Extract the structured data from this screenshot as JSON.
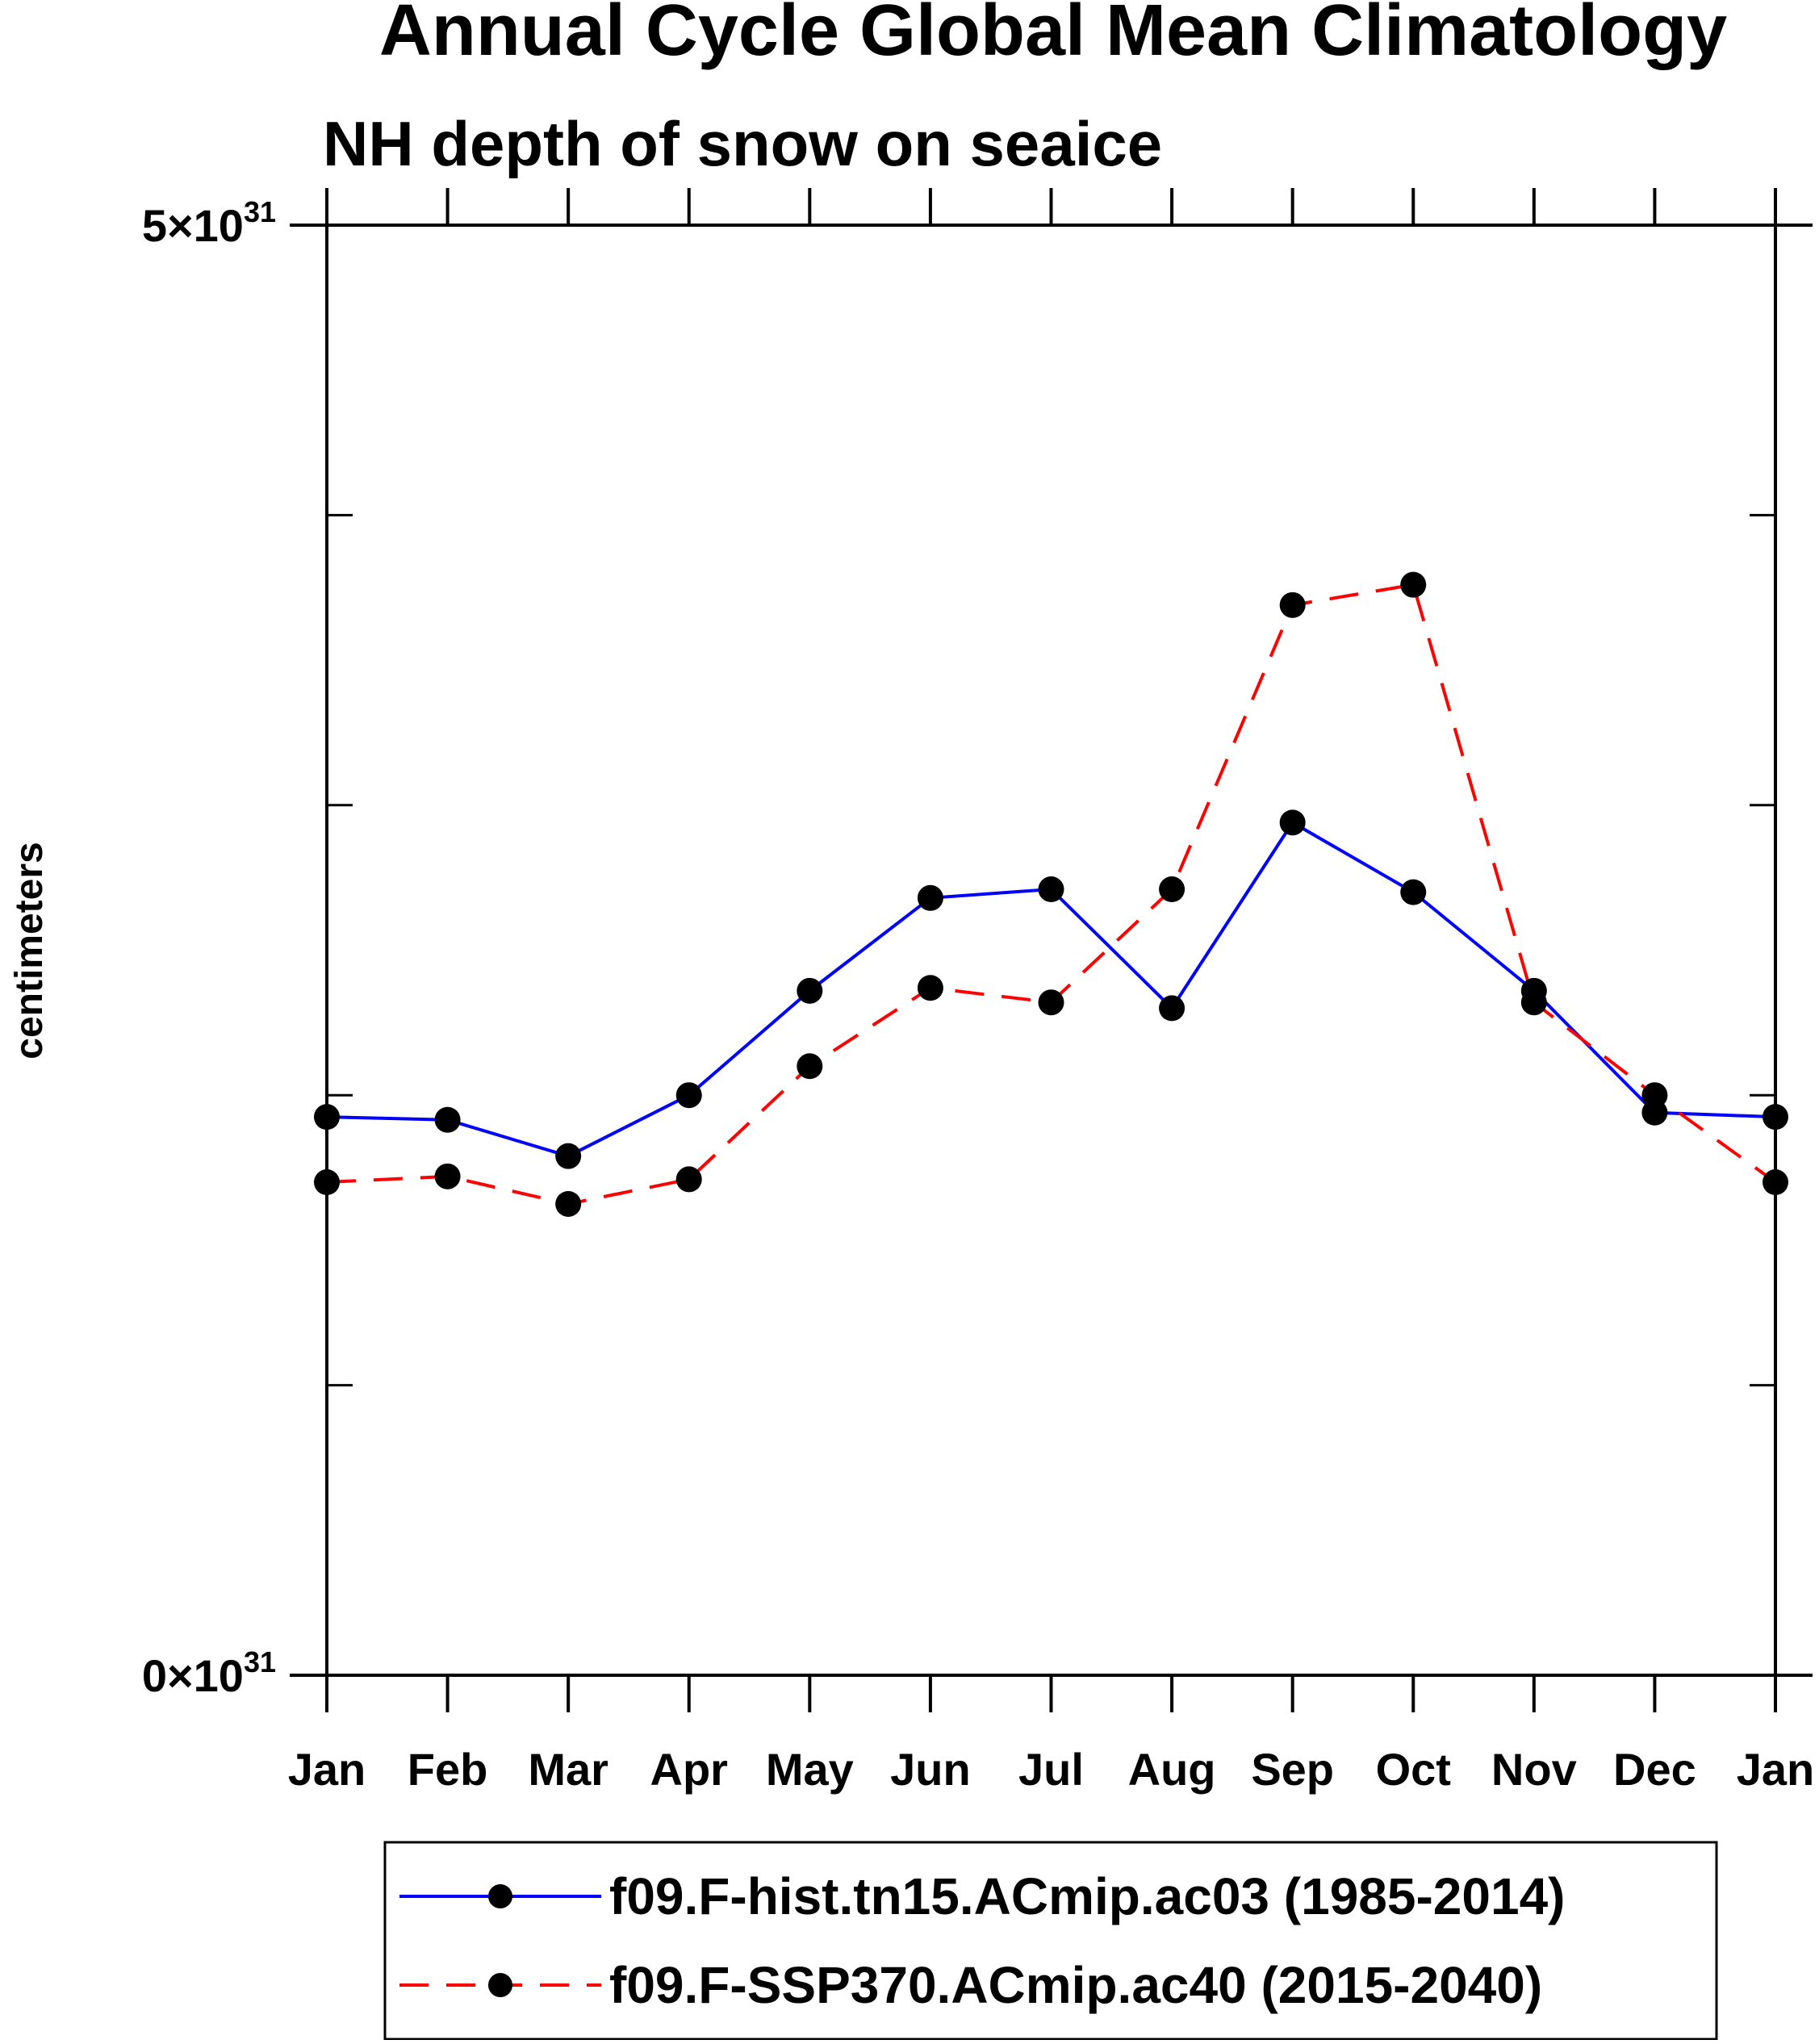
{
  "chart_data": {
    "type": "line",
    "title": "Annual Cycle Global Mean Climatology",
    "subtitle": "NH depth of snow on seaice",
    "xlabel": "",
    "ylabel": "centimeters",
    "categories": [
      "Jan",
      "Feb",
      "Mar",
      "Apr",
      "May",
      "Jun",
      "Jul",
      "Aug",
      "Sep",
      "Oct",
      "Nov",
      "Dec",
      "Jan"
    ],
    "ylim": [
      0,
      5e+31
    ],
    "y_tick_labels": [
      {
        "mantissa": "0",
        "times": "×",
        "base": "10",
        "exp": "31"
      },
      {
        "mantissa": "5",
        "times": "×",
        "base": "10",
        "exp": "31"
      }
    ],
    "minor_y_ticks": [
      1e+31,
      2e+31,
      3e+31,
      4e+31
    ],
    "grid": false,
    "legend_position": "bottom",
    "series": [
      {
        "name": "f09.F-hist.tn15.ACmip.ac03 (1985-2014)",
        "color": "#0000ff",
        "dash": "solid",
        "marker": "filled-circle",
        "values": [
          1.925e+31,
          1.915e+31,
          1.79e+31,
          2e+31,
          2.36e+31,
          2.68e+31,
          2.71e+31,
          2.3e+31,
          2.94e+31,
          2.7e+31,
          2.36e+31,
          1.94e+31,
          1.925e+31
        ]
      },
      {
        "name": "f09.F-SSP370.ACmip.ac40 (2015-2040)",
        "color": "#ff0000",
        "dash": "dashed",
        "marker": "filled-circle",
        "values": [
          1.7e+31,
          1.72e+31,
          1.625e+31,
          1.71e+31,
          2.1e+31,
          2.37e+31,
          2.32e+31,
          2.71e+31,
          3.69e+31,
          3.76e+31,
          2.32e+31,
          2e+31,
          1.7e+31
        ]
      }
    ]
  }
}
